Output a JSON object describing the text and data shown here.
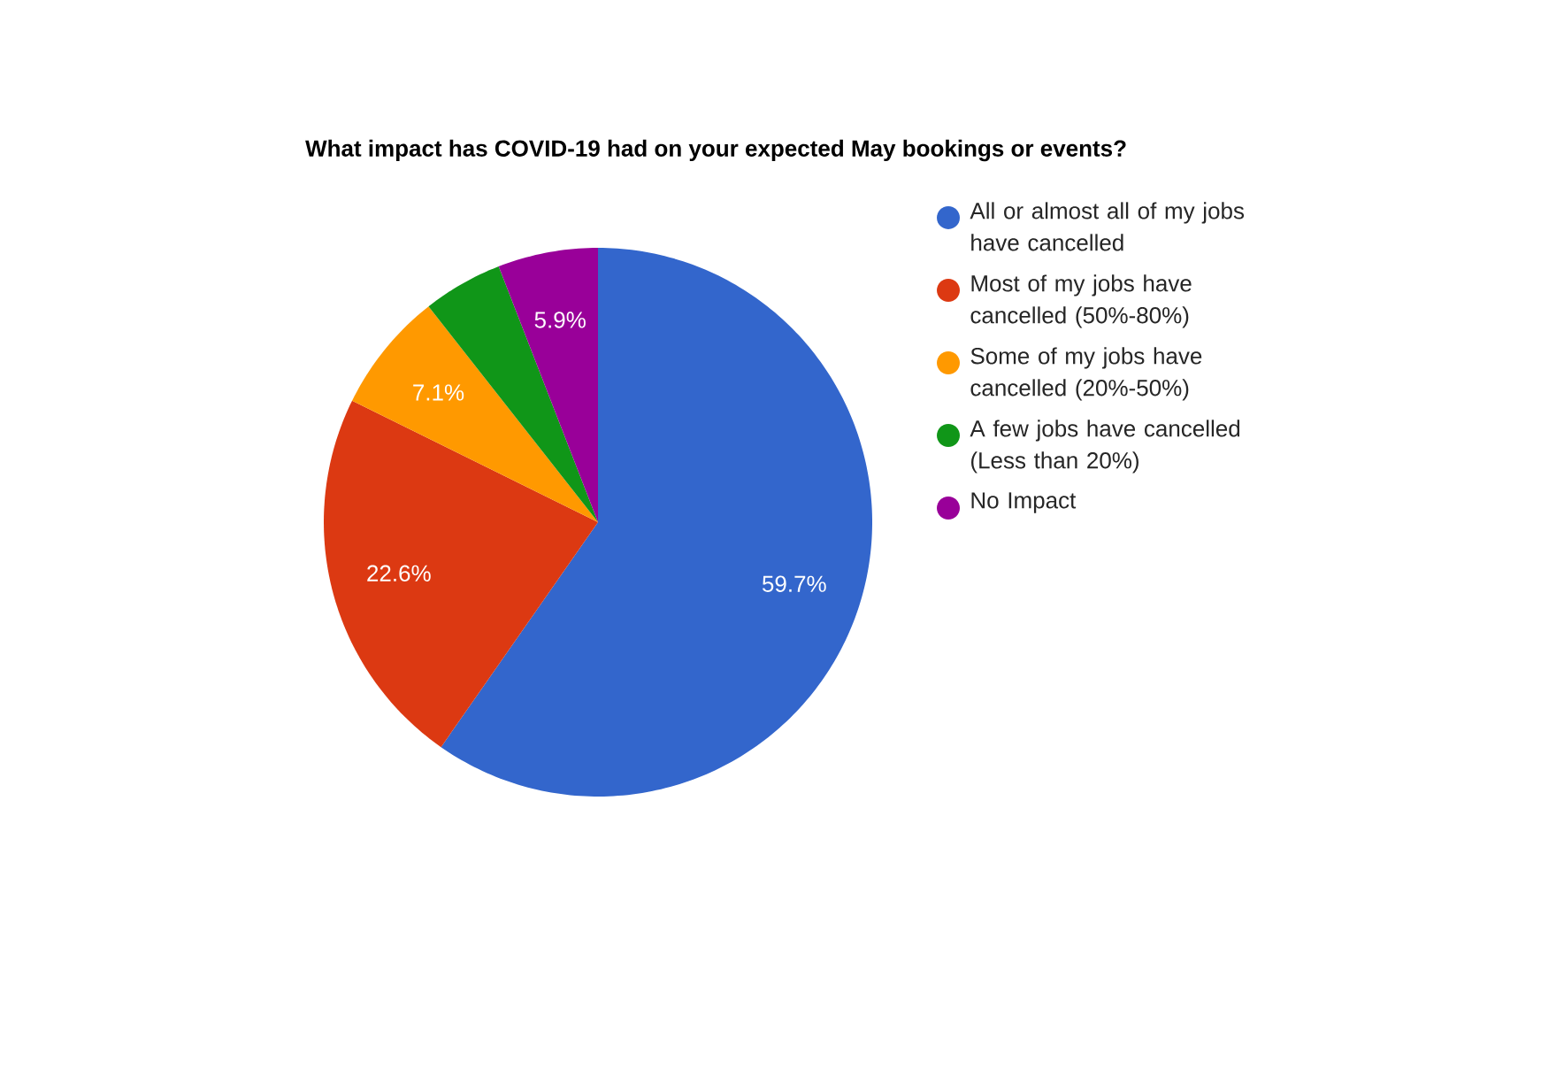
{
  "chart_data": {
    "type": "pie",
    "title": "What impact has COVID-19 had on your expected May bookings or events?",
    "categories": [
      "All or almost all of my jobs have cancelled",
      "Most of my jobs have cancelled (50%-80%)",
      "Some of my jobs have cancelled (20%-50%)",
      "A few jobs have cancelled (Less than 20%)",
      "No Impact"
    ],
    "values": [
      59.7,
      22.6,
      7.1,
      4.7,
      5.9
    ],
    "value_labels": [
      "59.7%",
      "22.6%",
      "7.1%",
      null,
      "5.9%"
    ],
    "colors": [
      "#3366cc",
      "#dc3912",
      "#ff9900",
      "#109618",
      "#990099"
    ],
    "legend": "right"
  }
}
